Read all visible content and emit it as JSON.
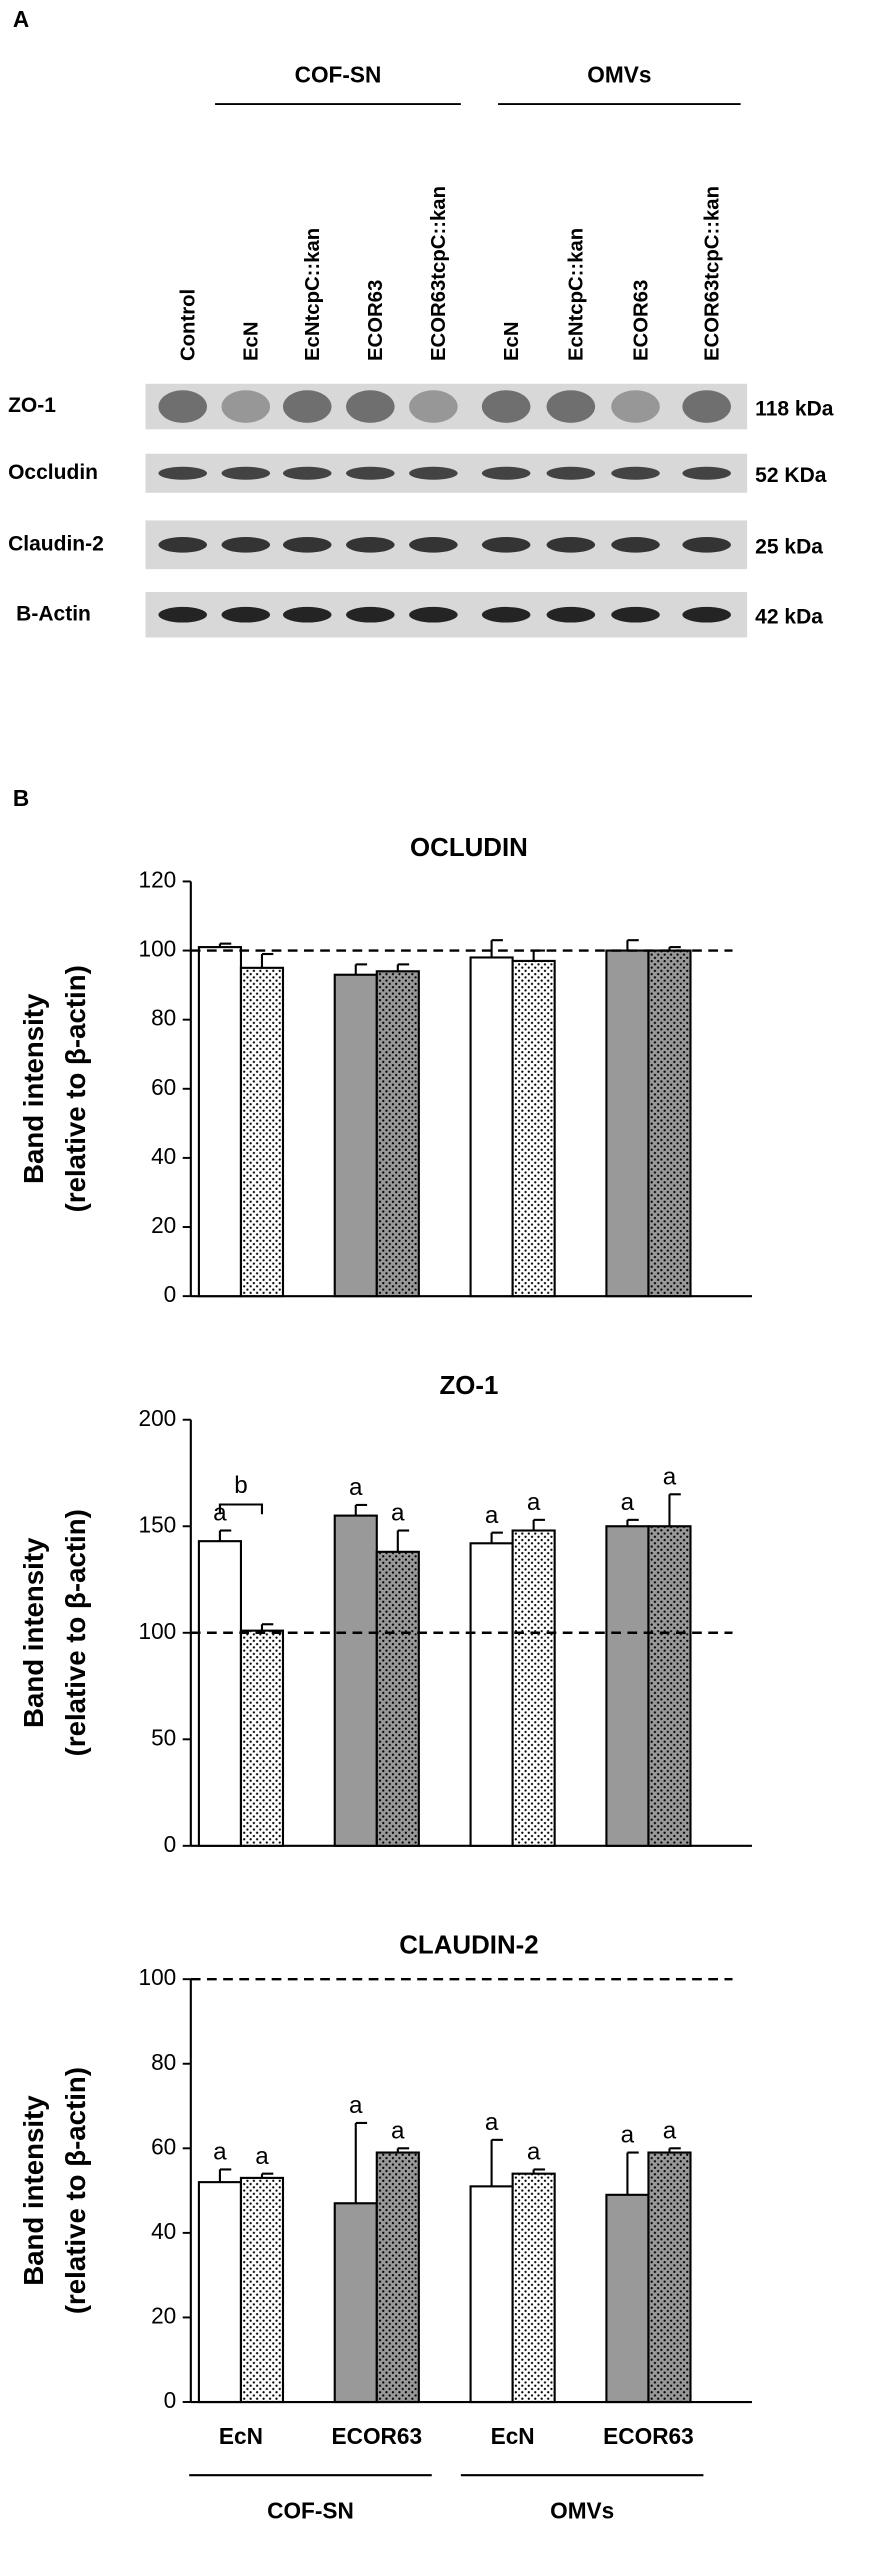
{
  "panel_a": {
    "label": "A",
    "groups": [
      "COF-SN",
      "OMVs"
    ],
    "lanes": [
      "Control",
      "EcN",
      "EcNtcpC::kan",
      "ECOR63",
      "ECOR63tcpC::kan",
      "EcN",
      "EcNtcpC::kan",
      "ECOR63",
      "ECOR63tcpC::kan"
    ],
    "rows": [
      {
        "protein": "ZO-1",
        "size": "118 kDa"
      },
      {
        "protein": "Occludin",
        "size": "52 KDa"
      },
      {
        "protein": "Claudin-2",
        "size": "25 kDa"
      },
      {
        "protein": "B-Actin",
        "size": "42 kDa"
      }
    ]
  },
  "panel_b_label": "B",
  "chart_data": [
    {
      "type": "bar",
      "title": "OCLUDIN",
      "y_label": [
        "Band intensity",
        "(relative to β-actin)"
      ],
      "categories": [
        null,
        null,
        null,
        null
      ],
      "category_colors": [
        "#ffffff",
        "#999999",
        "#ffffff",
        "#999999"
      ],
      "series": [
        {
          "pattern": "solid",
          "values": [
            101,
            93,
            98,
            100
          ],
          "errors": [
            1,
            3,
            5,
            3
          ]
        },
        {
          "pattern": "dots",
          "values": [
            95,
            94,
            97,
            100
          ],
          "errors": [
            4,
            2,
            3,
            1
          ]
        }
      ],
      "reference_line": 100,
      "ylim": [
        0,
        120
      ],
      "yticks": [
        0,
        20,
        40,
        60,
        80,
        100,
        120
      ]
    },
    {
      "type": "bar",
      "title": "ZO-1",
      "y_label": [
        "Band intensity",
        "(relative to β-actin)"
      ],
      "categories": [
        null,
        null,
        null,
        null
      ],
      "category_colors": [
        "#ffffff",
        "#999999",
        "#ffffff",
        "#999999"
      ],
      "series": [
        {
          "pattern": "solid",
          "values": [
            143,
            155,
            142,
            150
          ],
          "errors": [
            5,
            5,
            5,
            3
          ],
          "annotations": [
            "a",
            "a",
            "a",
            "a"
          ]
        },
        {
          "pattern": "dots",
          "values": [
            101,
            138,
            148,
            150
          ],
          "errors": [
            3,
            10,
            5,
            15
          ],
          "annotations": [
            null,
            "a",
            "a",
            "a"
          ]
        }
      ],
      "bracket": {
        "category": 0,
        "label": "b"
      },
      "reference_line": 100,
      "ylim": [
        0,
        200
      ],
      "yticks": [
        0,
        50,
        100,
        150,
        200
      ]
    },
    {
      "type": "bar",
      "title": "CLAUDIN-2",
      "y_label": [
        "Band intensity",
        "(relative to β-actin)"
      ],
      "categories": [
        "EcN",
        "ECOR63",
        "EcN",
        "ECOR63"
      ],
      "groups": [
        {
          "label": "COF-SN",
          "categories": 2
        },
        {
          "label": "OMVs",
          "categories": 2
        }
      ],
      "category_colors": [
        "#ffffff",
        "#999999",
        "#ffffff",
        "#999999"
      ],
      "series": [
        {
          "pattern": "solid",
          "values": [
            52,
            47,
            51,
            49
          ],
          "errors": [
            3,
            19,
            11,
            10
          ],
          "annotations": [
            "a",
            "a",
            "a",
            "a"
          ]
        },
        {
          "pattern": "dots",
          "values": [
            53,
            59,
            54,
            59
          ],
          "errors": [
            1,
            1,
            1,
            1
          ],
          "annotations": [
            "a",
            "a",
            "a",
            "a"
          ]
        }
      ],
      "reference_line": 100,
      "ylim": [
        0,
        100
      ],
      "yticks": [
        0,
        20,
        40,
        60,
        80,
        100
      ]
    }
  ]
}
